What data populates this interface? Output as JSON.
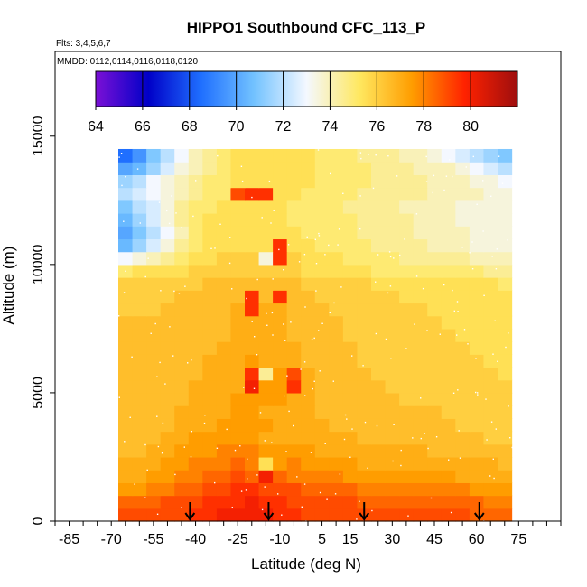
{
  "chart_data": {
    "type": "heatmap",
    "title": "HIPPO1 Southbound CFC_113_P",
    "flights_note": "Flts: 3,4,5,6,7",
    "dates_note": "MMDD: 0112,0114,0116,0118,0120",
    "xlabel": "Latitude (deg N)",
    "ylabel": "Altitude (m)",
    "xlim": [
      -90,
      90
    ],
    "ylim": [
      0,
      18300
    ],
    "x_ticks": [
      -85,
      -70,
      -55,
      -40,
      -25,
      -10,
      5,
      15,
      30,
      45,
      60,
      75
    ],
    "y_ticks": [
      0,
      5000,
      10000,
      15000
    ],
    "colorbar": {
      "range": [
        64,
        82
      ],
      "ticks": [
        64,
        66,
        68,
        70,
        72,
        74,
        76,
        78,
        80
      ],
      "colors": [
        "#7b10d6",
        "#0000c8",
        "#1f6fff",
        "#72c2ff",
        "#f4f8ff",
        "#ffe860",
        "#ff9d00",
        "#ff2200",
        "#9e0e0e"
      ]
    },
    "arrow_latitudes": [
      -42,
      -14,
      20,
      61
    ],
    "grid": false,
    "legend": "colorbar top",
    "value_grid": {
      "x_start": -65,
      "x_step": 5,
      "y_start": 250,
      "y_step": 500,
      "rows": [
        [
          79.0,
          79.0,
          79.0,
          79.0,
          79.0,
          79.5,
          79.5,
          80.0,
          80.0,
          80.0,
          80.0,
          79.5,
          79.5,
          79.0,
          79.0,
          79.0,
          79.0,
          79.0,
          79.0,
          79.0,
          79.0,
          79.0,
          79.0,
          79.0,
          79.0,
          78.5,
          78.5,
          78.5
        ],
        [
          78.5,
          78.5,
          78.5,
          79.0,
          79.0,
          79.0,
          79.5,
          79.5,
          79.5,
          80.0,
          79.5,
          79.5,
          79.0,
          79.0,
          79.0,
          79.0,
          79.0,
          78.5,
          78.5,
          78.5,
          78.5,
          78.5,
          78.5,
          78.5,
          78.5,
          78.5,
          78.0,
          78.0
        ],
        [
          77.5,
          77.5,
          78.0,
          78.0,
          78.5,
          78.5,
          79.0,
          79.0,
          79.5,
          79.5,
          79.0,
          79.0,
          79.0,
          78.5,
          78.5,
          78.5,
          78.5,
          78.0,
          78.0,
          78.0,
          78.0,
          78.0,
          78.0,
          78.0,
          78.0,
          77.5,
          77.5,
          77.5
        ],
        [
          77.0,
          77.0,
          77.5,
          77.5,
          78.0,
          78.0,
          78.5,
          78.5,
          79.0,
          78.5,
          80.0,
          78.5,
          78.0,
          78.0,
          78.0,
          78.0,
          77.5,
          77.5,
          77.5,
          77.5,
          77.5,
          77.5,
          77.5,
          77.5,
          77.0,
          77.0,
          77.0,
          77.0
        ],
        [
          77.0,
          77.0,
          77.0,
          77.5,
          77.5,
          78.0,
          78.0,
          78.0,
          78.5,
          78.0,
          75.5,
          77.5,
          78.0,
          77.5,
          77.5,
          77.5,
          77.5,
          77.0,
          77.0,
          77.0,
          77.0,
          77.0,
          77.0,
          77.0,
          77.0,
          77.0,
          77.0,
          76.5
        ],
        [
          76.5,
          76.5,
          77.0,
          77.0,
          77.5,
          77.5,
          77.5,
          78.0,
          78.0,
          78.0,
          77.5,
          77.5,
          77.5,
          77.5,
          77.0,
          77.0,
          77.0,
          77.0,
          77.0,
          77.0,
          77.0,
          77.0,
          76.5,
          76.5,
          76.5,
          76.5,
          76.5,
          76.5
        ],
        [
          76.5,
          76.5,
          76.5,
          77.0,
          77.0,
          77.5,
          77.5,
          77.5,
          77.5,
          77.5,
          77.0,
          77.0,
          77.0,
          77.0,
          77.0,
          77.0,
          77.0,
          76.5,
          76.5,
          76.5,
          76.5,
          76.5,
          76.5,
          76.5,
          76.5,
          76.5,
          76.0,
          76.0
        ],
        [
          76.5,
          76.5,
          76.5,
          76.5,
          77.0,
          77.0,
          77.0,
          77.5,
          77.5,
          77.5,
          77.5,
          77.0,
          77.0,
          77.0,
          77.0,
          76.5,
          76.5,
          76.5,
          76.5,
          76.5,
          76.5,
          76.5,
          76.5,
          76.5,
          76.0,
          76.0,
          76.0,
          76.0
        ],
        [
          76.5,
          76.5,
          76.5,
          76.5,
          77.0,
          77.0,
          77.0,
          77.0,
          77.5,
          77.5,
          77.0,
          77.0,
          77.0,
          77.0,
          76.5,
          76.5,
          76.5,
          76.5,
          76.5,
          76.5,
          76.5,
          76.5,
          76.5,
          76.0,
          76.0,
          76.0,
          76.0,
          76.0
        ],
        [
          76.5,
          76.5,
          76.5,
          76.5,
          76.5,
          77.0,
          77.0,
          77.0,
          77.5,
          77.5,
          77.5,
          77.5,
          77.0,
          77.0,
          76.5,
          76.5,
          76.5,
          76.5,
          76.5,
          76.5,
          76.0,
          76.0,
          76.0,
          76.0,
          76.0,
          76.0,
          76.0,
          76.0
        ],
        [
          76.5,
          76.5,
          76.5,
          76.5,
          76.5,
          77.0,
          77.0,
          77.0,
          77.0,
          80.0,
          77.5,
          77.5,
          79.5,
          77.0,
          76.5,
          76.5,
          76.5,
          76.5,
          76.5,
          76.0,
          76.0,
          76.0,
          76.0,
          76.0,
          76.0,
          76.0,
          76.0,
          76.0
        ],
        [
          76.5,
          76.5,
          76.5,
          76.5,
          76.5,
          76.5,
          77.0,
          77.0,
          77.0,
          79.5,
          74.5,
          77.5,
          79.0,
          77.0,
          76.5,
          76.5,
          76.5,
          76.5,
          76.0,
          76.0,
          76.0,
          76.0,
          76.0,
          76.0,
          76.0,
          76.0,
          76.0,
          75.5
        ],
        [
          76.5,
          76.5,
          76.5,
          76.5,
          76.5,
          76.5,
          77.0,
          77.0,
          77.0,
          77.5,
          77.0,
          77.0,
          77.0,
          76.5,
          76.5,
          76.5,
          76.5,
          76.0,
          76.0,
          76.0,
          76.0,
          76.0,
          76.0,
          76.0,
          76.0,
          76.0,
          75.5,
          75.5
        ],
        [
          76.5,
          76.5,
          76.5,
          76.5,
          76.5,
          76.5,
          76.5,
          77.0,
          77.0,
          77.0,
          77.0,
          77.0,
          77.0,
          76.5,
          76.5,
          76.5,
          76.5,
          76.0,
          76.0,
          76.0,
          76.0,
          76.0,
          76.0,
          76.0,
          76.0,
          75.5,
          75.5,
          75.5
        ],
        [
          76.5,
          76.5,
          76.5,
          76.5,
          76.5,
          76.5,
          76.5,
          76.5,
          77.0,
          77.0,
          77.0,
          77.0,
          76.5,
          76.5,
          76.5,
          76.5,
          76.0,
          76.0,
          76.0,
          76.0,
          76.0,
          76.0,
          76.0,
          76.0,
          75.5,
          75.5,
          75.5,
          75.5
        ],
        [
          76.5,
          76.5,
          76.5,
          76.5,
          76.5,
          76.5,
          76.5,
          76.5,
          77.0,
          77.0,
          77.0,
          77.0,
          76.5,
          76.5,
          76.5,
          76.5,
          76.0,
          76.0,
          76.0,
          76.0,
          76.0,
          76.0,
          76.0,
          75.5,
          75.5,
          75.5,
          75.5,
          75.5
        ],
        [
          76.0,
          76.0,
          76.0,
          76.5,
          76.5,
          76.5,
          76.5,
          76.5,
          77.0,
          79.5,
          77.0,
          77.0,
          76.5,
          76.5,
          76.5,
          76.0,
          76.0,
          76.0,
          76.0,
          76.0,
          76.0,
          76.0,
          75.5,
          75.5,
          75.5,
          75.5,
          75.5,
          75.5
        ],
        [
          76.0,
          76.0,
          76.0,
          76.0,
          76.5,
          76.5,
          76.5,
          76.5,
          76.5,
          79.5,
          76.5,
          79.5,
          76.5,
          76.5,
          76.0,
          76.0,
          76.0,
          76.0,
          76.0,
          76.0,
          75.5,
          75.5,
          75.5,
          75.5,
          75.5,
          75.5,
          75.5,
          75.5
        ],
        [
          76.0,
          76.0,
          76.0,
          76.0,
          76.0,
          76.0,
          76.5,
          76.5,
          76.5,
          76.5,
          76.5,
          76.5,
          76.5,
          76.0,
          76.0,
          76.0,
          76.0,
          76.0,
          75.5,
          75.5,
          75.5,
          75.5,
          75.5,
          75.5,
          75.5,
          75.5,
          75.5,
          75.0
        ],
        [
          75.0,
          75.5,
          75.5,
          75.5,
          75.5,
          76.0,
          76.0,
          76.0,
          76.0,
          76.0,
          76.0,
          76.0,
          76.0,
          75.5,
          75.5,
          75.5,
          75.5,
          75.5,
          75.0,
          75.0,
          75.0,
          75.0,
          75.0,
          75.0,
          75.0,
          75.0,
          74.5,
          74.5
        ],
        [
          73.0,
          73.5,
          74.0,
          74.5,
          75.0,
          75.5,
          75.5,
          76.0,
          76.0,
          76.0,
          73.5,
          79.5,
          76.0,
          75.5,
          75.5,
          75.5,
          75.0,
          75.0,
          75.0,
          75.0,
          74.5,
          74.5,
          74.5,
          74.5,
          74.5,
          74.0,
          74.0,
          74.0
        ],
        [
          70.5,
          71.5,
          72.5,
          73.5,
          74.5,
          75.0,
          75.5,
          75.5,
          75.5,
          75.5,
          75.5,
          79.5,
          75.5,
          75.5,
          75.0,
          75.0,
          75.0,
          75.0,
          74.5,
          74.5,
          74.5,
          74.5,
          74.0,
          74.0,
          74.0,
          73.5,
          73.5,
          73.5
        ],
        [
          70.0,
          71.0,
          72.0,
          73.0,
          74.0,
          75.0,
          75.5,
          75.5,
          75.5,
          75.5,
          75.5,
          75.5,
          75.5,
          75.0,
          75.0,
          75.0,
          75.0,
          74.5,
          74.5,
          74.5,
          74.5,
          74.0,
          74.0,
          74.0,
          74.0,
          73.5,
          73.5,
          73.5
        ],
        [
          70.5,
          71.5,
          72.5,
          73.5,
          74.5,
          75.0,
          75.5,
          75.5,
          75.5,
          75.5,
          75.5,
          75.5,
          75.0,
          75.0,
          75.0,
          75.0,
          75.0,
          74.5,
          74.5,
          74.5,
          74.5,
          74.0,
          74.0,
          74.0,
          73.5,
          73.5,
          73.5,
          73.5
        ],
        [
          71.0,
          72.0,
          72.5,
          73.5,
          74.5,
          75.0,
          75.0,
          75.5,
          75.5,
          75.5,
          75.5,
          75.5,
          75.0,
          75.0,
          75.0,
          75.0,
          74.5,
          74.5,
          74.5,
          74.5,
          74.0,
          74.0,
          74.0,
          74.0,
          73.5,
          73.5,
          73.5,
          73.5
        ],
        [
          72.0,
          72.5,
          73.0,
          73.5,
          74.0,
          74.5,
          75.0,
          75.0,
          79.0,
          79.5,
          79.5,
          75.5,
          75.5,
          75.0,
          75.0,
          75.0,
          75.0,
          74.5,
          74.5,
          74.5,
          74.5,
          74.5,
          74.0,
          74.0,
          74.0,
          74.0,
          73.5,
          73.5
        ],
        [
          71.5,
          72.0,
          73.0,
          73.5,
          74.0,
          74.5,
          75.0,
          75.0,
          75.5,
          75.5,
          75.5,
          75.5,
          75.5,
          75.5,
          75.0,
          75.0,
          75.0,
          75.0,
          74.5,
          74.5,
          74.5,
          74.5,
          74.0,
          74.0,
          74.0,
          73.5,
          73.5,
          73.0
        ],
        [
          70.0,
          70.5,
          71.5,
          72.5,
          73.5,
          74.0,
          74.5,
          75.0,
          75.5,
          75.5,
          75.5,
          75.5,
          75.5,
          75.5,
          75.0,
          75.0,
          75.0,
          75.0,
          74.5,
          74.5,
          74.5,
          74.0,
          74.0,
          74.0,
          73.5,
          73.0,
          72.5,
          72.0
        ],
        [
          68.5,
          69.5,
          71.0,
          72.0,
          73.0,
          74.0,
          74.5,
          75.0,
          75.5,
          75.5,
          75.5,
          75.5,
          75.5,
          75.5,
          75.0,
          75.0,
          75.0,
          74.5,
          74.5,
          74.5,
          74.0,
          74.0,
          73.5,
          73.0,
          72.5,
          72.0,
          71.5,
          71.0
        ]
      ]
    }
  }
}
